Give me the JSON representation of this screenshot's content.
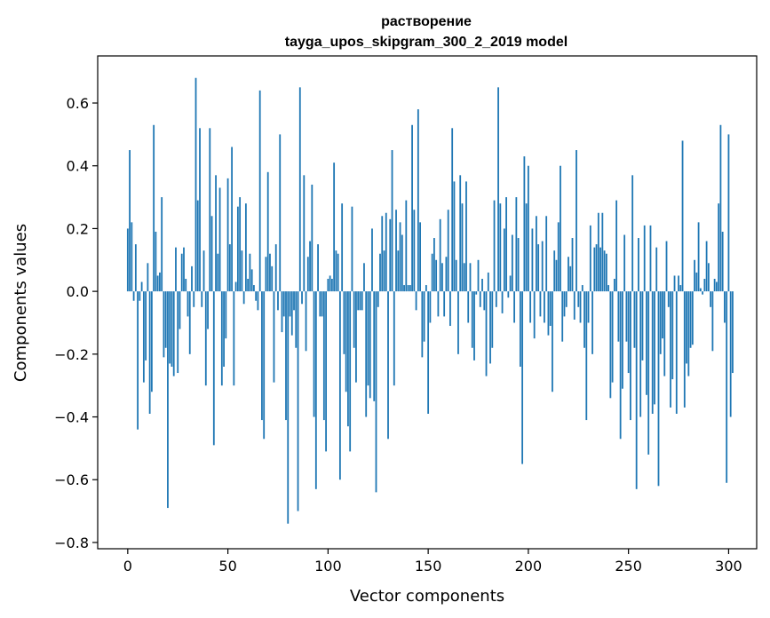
{
  "chart_data": {
    "type": "bar",
    "title_line1": "растворение",
    "title_line2": "tayga_upos_skipgram_300_2_2019 model",
    "xlabel": "Vector components",
    "ylabel": "Components values",
    "xlim": [
      -15,
      314
    ],
    "ylim": [
      -0.82,
      0.75
    ],
    "xticks": [
      0,
      50,
      100,
      150,
      200,
      250,
      300
    ],
    "xtick_labels": [
      "0",
      "50",
      "100",
      "150",
      "200",
      "250",
      "300"
    ],
    "yticks": [
      -0.8,
      -0.6,
      -0.4,
      -0.2,
      0.0,
      0.2,
      0.4,
      0.6
    ],
    "ytick_labels": [
      "−0.8",
      "−0.6",
      "−0.4",
      "−0.2",
      "0.0",
      "0.2",
      "0.4",
      "0.6"
    ],
    "bar_color": "#1f77b4",
    "values": [
      0.2,
      0.45,
      0.22,
      -0.03,
      0.15,
      -0.44,
      -0.03,
      0.03,
      -0.29,
      -0.22,
      0.09,
      -0.39,
      -0.32,
      0.53,
      0.19,
      0.05,
      0.06,
      0.3,
      -0.21,
      -0.18,
      -0.69,
      -0.23,
      -0.24,
      -0.27,
      0.14,
      -0.26,
      -0.12,
      0.12,
      0.14,
      0.04,
      -0.08,
      -0.2,
      0.08,
      -0.05,
      0.68,
      0.29,
      0.52,
      -0.05,
      0.13,
      -0.3,
      -0.12,
      0.52,
      0.24,
      -0.49,
      0.37,
      0.12,
      0.33,
      -0.3,
      -0.24,
      -0.15,
      0.36,
      0.15,
      0.46,
      -0.3,
      0.03,
      0.27,
      0.3,
      0.13,
      -0.04,
      0.28,
      0.04,
      0.12,
      0.07,
      0.02,
      -0.03,
      -0.06,
      0.64,
      -0.41,
      -0.47,
      0.11,
      0.38,
      0.12,
      0.08,
      -0.29,
      0.15,
      -0.06,
      0.5,
      -0.13,
      -0.08,
      -0.41,
      -0.74,
      -0.08,
      -0.14,
      -0.06,
      -0.18,
      -0.7,
      0.65,
      -0.04,
      0.37,
      -0.19,
      0.11,
      0.16,
      0.34,
      -0.4,
      -0.63,
      0.15,
      -0.08,
      -0.08,
      -0.41,
      -0.51,
      0.04,
      0.05,
      0.04,
      0.41,
      0.13,
      0.12,
      -0.6,
      0.28,
      -0.2,
      -0.32,
      -0.43,
      -0.51,
      0.27,
      -0.18,
      -0.29,
      -0.06,
      -0.06,
      -0.06,
      0.09,
      -0.4,
      -0.3,
      -0.34,
      0.2,
      -0.35,
      -0.64,
      -0.05,
      0.12,
      0.24,
      0.13,
      0.25,
      -0.47,
      0.23,
      0.45,
      -0.3,
      0.26,
      0.13,
      0.22,
      0.18,
      0.02,
      0.29,
      0.02,
      0.02,
      0.53,
      0.26,
      -0.06,
      0.58,
      0.22,
      -0.21,
      -0.16,
      0.02,
      -0.39,
      -0.1,
      0.12,
      0.17,
      0.1,
      -0.08,
      0.23,
      0.09,
      -0.08,
      0.11,
      0.26,
      -0.11,
      0.52,
      0.35,
      0.1,
      -0.2,
      0.37,
      0.28,
      0.09,
      0.35,
      -0.1,
      0.09,
      -0.18,
      -0.22,
      -0.01,
      0.1,
      -0.05,
      0.04,
      -0.06,
      -0.27,
      0.06,
      -0.23,
      -0.18,
      0.29,
      -0.05,
      0.65,
      0.28,
      -0.07,
      0.2,
      0.3,
      -0.02,
      0.05,
      0.18,
      -0.1,
      0.3,
      0.17,
      -0.24,
      -0.55,
      0.43,
      0.28,
      0.4,
      -0.1,
      0.2,
      -0.15,
      0.24,
      0.15,
      -0.08,
      0.16,
      -0.1,
      0.24,
      -0.14,
      -0.11,
      -0.32,
      0.13,
      0.1,
      0.22,
      0.4,
      -0.16,
      -0.08,
      -0.05,
      0.11,
      0.08,
      0.17,
      -0.09,
      0.45,
      -0.05,
      -0.1,
      0.02,
      -0.18,
      -0.41,
      -0.1,
      0.21,
      -0.2,
      0.14,
      0.15,
      0.25,
      0.14,
      0.25,
      0.13,
      0.12,
      0.02,
      -0.34,
      -0.29,
      0.04,
      0.29,
      -0.16,
      -0.47,
      -0.31,
      0.18,
      -0.16,
      -0.26,
      -0.41,
      0.37,
      -0.18,
      -0.63,
      0.17,
      -0.4,
      -0.22,
      0.21,
      -0.33,
      -0.52,
      0.21,
      -0.39,
      -0.36,
      0.14,
      -0.62,
      -0.2,
      -0.15,
      -0.27,
      0.16,
      -0.05,
      -0.37,
      -0.28,
      0.05,
      -0.39,
      0.05,
      0.02,
      0.48,
      -0.37,
      -0.23,
      -0.27,
      -0.18,
      -0.17,
      0.1,
      0.06,
      0.22,
      0.01,
      -0.01,
      0.04,
      0.16,
      0.09,
      -0.05,
      -0.19,
      0.04,
      0.03,
      0.28,
      0.53,
      0.19,
      -0.1,
      -0.61,
      0.5,
      -0.4,
      -0.26
    ]
  }
}
